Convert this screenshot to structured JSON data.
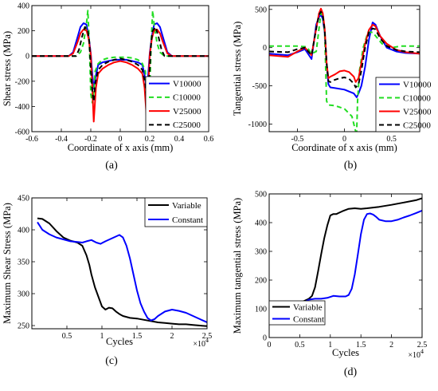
{
  "chart_data": [
    {
      "type": "line",
      "id": "a",
      "caption": "(a)",
      "xlabel": "Coordinate of x axis (mm)",
      "ylabel": "Shear stress (MPa)",
      "xlim": [
        -0.6,
        0.6
      ],
      "ylim": [
        -600,
        400
      ],
      "xticks": [
        "-0.6",
        "-0.4",
        "-0.2",
        "0",
        "0.2",
        "0.4",
        "0.6"
      ],
      "xtick_values": [
        -0.6,
        -0.4,
        -0.2,
        0,
        0.2,
        0.4,
        0.6
      ],
      "yticks": [
        "-600",
        "-400",
        "-200",
        "0",
        "200",
        "400"
      ],
      "ytick_values": [
        -600,
        -400,
        -200,
        0,
        200,
        400
      ],
      "grid": false,
      "legend": "bottom-right",
      "series": [
        {
          "name": "V10000",
          "color": "#0000ff",
          "dash": "solid",
          "x": [
            -0.6,
            -0.35,
            -0.32,
            -0.29,
            -0.27,
            -0.25,
            -0.23,
            -0.215,
            -0.2,
            -0.19,
            -0.18,
            -0.165,
            -0.15,
            -0.12,
            -0.08,
            -0.04,
            0,
            0.04,
            0.08,
            0.12,
            0.15,
            0.165,
            0.18,
            0.19,
            0.2,
            0.215,
            0.23,
            0.25,
            0.27,
            0.29,
            0.32,
            0.35,
            0.6
          ],
          "y": [
            0,
            0,
            30,
            150,
            230,
            260,
            250,
            160,
            20,
            -140,
            -260,
            -150,
            -70,
            -50,
            -40,
            -30,
            -30,
            -30,
            -40,
            -50,
            -70,
            -150,
            -260,
            -140,
            20,
            160,
            250,
            260,
            230,
            150,
            30,
            0,
            0
          ]
        },
        {
          "name": "C10000",
          "color": "#22dd22",
          "dash": "dashed",
          "x": [
            -0.6,
            -0.3,
            -0.27,
            -0.25,
            -0.23,
            -0.22,
            -0.21,
            -0.2,
            -0.19,
            -0.18,
            -0.17,
            -0.15,
            -0.12,
            -0.08,
            -0.04,
            0,
            0.04,
            0.08,
            0.12,
            0.15,
            0.17,
            0.18,
            0.19,
            0.2,
            0.21,
            0.22,
            0.23,
            0.25,
            0.27,
            0.3,
            0.6
          ],
          "y": [
            0,
            0,
            30,
            100,
            250,
            360,
            100,
            -300,
            -370,
            -300,
            -120,
            -60,
            -30,
            -15,
            -10,
            -10,
            -10,
            -15,
            -30,
            -60,
            -120,
            -300,
            -370,
            -300,
            100,
            360,
            250,
            100,
            30,
            0,
            0
          ]
        },
        {
          "name": "V25000",
          "color": "#ff0000",
          "dash": "solid",
          "x": [
            -0.6,
            -0.35,
            -0.32,
            -0.29,
            -0.27,
            -0.25,
            -0.23,
            -0.215,
            -0.2,
            -0.19,
            -0.18,
            -0.165,
            -0.15,
            -0.12,
            -0.08,
            -0.04,
            0,
            0.04,
            0.08,
            0.12,
            0.15,
            0.165,
            0.18,
            0.19,
            0.2,
            0.215,
            0.23,
            0.25,
            0.27,
            0.29,
            0.32,
            0.35,
            0.6
          ],
          "y": [
            0,
            0,
            20,
            110,
            180,
            210,
            205,
            140,
            10,
            -250,
            -520,
            -250,
            -140,
            -100,
            -70,
            -50,
            -40,
            -50,
            -70,
            -100,
            -140,
            -250,
            -500,
            -250,
            10,
            140,
            205,
            210,
            180,
            110,
            20,
            0,
            0
          ]
        },
        {
          "name": "C25000",
          "color": "#000000",
          "dash": "dashed",
          "x": [
            -0.6,
            -0.3,
            -0.28,
            -0.26,
            -0.24,
            -0.22,
            -0.21,
            -0.2,
            -0.19,
            -0.18,
            -0.17,
            -0.15,
            -0.12,
            -0.08,
            -0.04,
            0,
            0.04,
            0.08,
            0.12,
            0.15,
            0.17,
            0.18,
            0.19,
            0.2,
            0.21,
            0.22,
            0.24,
            0.26,
            0.28,
            0.3,
            0.6
          ],
          "y": [
            0,
            0,
            50,
            150,
            230,
            200,
            110,
            -100,
            -280,
            -360,
            -220,
            -110,
            -70,
            -45,
            -30,
            -20,
            -30,
            -45,
            -70,
            -110,
            -220,
            -360,
            -280,
            -100,
            110,
            200,
            230,
            150,
            50,
            0,
            0
          ]
        }
      ]
    },
    {
      "type": "line",
      "id": "b",
      "caption": "(b)",
      "xlabel": "Coordinate of x axis (mm)",
      "ylabel": "Tangential stress (MPa)",
      "xlim": [
        -0.8,
        0.8
      ],
      "ylim": [
        -1100,
        550
      ],
      "xticks": [
        "-0.5",
        "0",
        "0.5"
      ],
      "xtick_values": [
        -0.5,
        0,
        0.5
      ],
      "yticks": [
        "-1000",
        "-500",
        "0",
        "500"
      ],
      "ytick_values": [
        -1000,
        -500,
        0,
        500
      ],
      "grid": false,
      "legend": "bottom-right",
      "series": [
        {
          "name": "V10000",
          "color": "#0000ff",
          "dash": "solid",
          "x": [
            -0.8,
            -0.6,
            -0.5,
            -0.42,
            -0.35,
            -0.3,
            -0.27,
            -0.25,
            -0.23,
            -0.21,
            -0.19,
            -0.17,
            -0.15,
            -0.1,
            0,
            0.1,
            0.13,
            0.15,
            0.18,
            0.22,
            0.26,
            0.3,
            0.33,
            0.38,
            0.45,
            0.55,
            0.65,
            0.8
          ],
          "y": [
            -80,
            -100,
            -60,
            -20,
            -150,
            300,
            400,
            430,
            380,
            200,
            -200,
            -480,
            -520,
            -530,
            -550,
            -600,
            -650,
            -600,
            -500,
            -250,
            100,
            330,
            300,
            150,
            0,
            -50,
            -70,
            -80
          ]
        },
        {
          "name": "C10000",
          "color": "#22dd22",
          "dash": "dashed",
          "x": [
            -0.8,
            -0.5,
            -0.4,
            -0.35,
            -0.3,
            -0.27,
            -0.25,
            -0.23,
            -0.21,
            -0.19,
            -0.17,
            -0.1,
            0,
            0.08,
            0.1,
            0.12,
            0.13,
            0.14,
            0.16,
            0.2,
            0.25,
            0.3,
            0.4,
            0.5,
            0.6,
            0.8
          ],
          "y": [
            20,
            20,
            10,
            -80,
            -50,
            250,
            450,
            430,
            200,
            -700,
            -750,
            -760,
            -800,
            -900,
            -1000,
            -1100,
            -1100,
            -700,
            -300,
            0,
            200,
            200,
            50,
            0,
            20,
            20
          ]
        },
        {
          "name": "V25000",
          "color": "#ff0000",
          "dash": "solid",
          "x": [
            -0.8,
            -0.6,
            -0.5,
            -0.42,
            -0.35,
            -0.3,
            -0.27,
            -0.25,
            -0.23,
            -0.21,
            -0.19,
            -0.17,
            -0.15,
            -0.1,
            -0.05,
            0,
            0.05,
            0.1,
            0.12,
            0.15,
            0.18,
            0.22,
            0.26,
            0.3,
            0.33,
            0.38,
            0.45,
            0.55,
            0.65,
            0.8
          ],
          "y": [
            -100,
            -120,
            -50,
            0,
            -100,
            250,
            450,
            510,
            450,
            250,
            -200,
            -400,
            -380,
            -350,
            -310,
            -300,
            -320,
            -380,
            -450,
            -400,
            -200,
            50,
            230,
            300,
            280,
            150,
            50,
            -30,
            -60,
            -80
          ]
        },
        {
          "name": "C25000",
          "color": "#000000",
          "dash": "dashed",
          "x": [
            -0.8,
            -0.6,
            -0.5,
            -0.42,
            -0.35,
            -0.3,
            -0.27,
            -0.25,
            -0.23,
            -0.21,
            -0.19,
            -0.17,
            -0.15,
            -0.1,
            -0.05,
            0,
            0.05,
            0.1,
            0.12,
            0.15,
            0.18,
            0.22,
            0.26,
            0.3,
            0.33,
            0.38,
            0.45,
            0.55,
            0.65,
            0.8
          ],
          "y": [
            -50,
            -60,
            -20,
            0,
            -100,
            250,
            430,
            470,
            420,
            230,
            -200,
            -440,
            -450,
            -420,
            -400,
            -390,
            -410,
            -470,
            -520,
            -480,
            -300,
            0,
            200,
            250,
            240,
            120,
            20,
            -30,
            -50,
            -60
          ]
        }
      ]
    },
    {
      "type": "line",
      "id": "c",
      "caption": "(c)",
      "xlabel": "Cycles",
      "ylabel": "Maximum Shear Stress (MPa)",
      "multiplier": "×10^4",
      "xlim": [
        0,
        2.5
      ],
      "ylim": [
        245,
        450
      ],
      "xticks": [
        "0.5",
        "1",
        "1.5",
        "2",
        "2.5"
      ],
      "xtick_values": [
        0.5,
        1,
        1.5,
        2,
        2.5
      ],
      "yticks": [
        "250",
        "300",
        "350",
        "400",
        "450"
      ],
      "ytick_values": [
        250,
        300,
        350,
        400,
        450
      ],
      "grid": false,
      "legend": "top-right",
      "series": [
        {
          "name": "Variable",
          "color": "#000000",
          "dash": "solid",
          "x": [
            0.08,
            0.15,
            0.25,
            0.35,
            0.45,
            0.55,
            0.65,
            0.72,
            0.78,
            0.82,
            0.85,
            0.9,
            0.95,
            1.0,
            1.05,
            1.1,
            1.15,
            1.2,
            1.25,
            1.3,
            1.4,
            1.5,
            1.6,
            1.7,
            1.8,
            1.9,
            2.0,
            2.1,
            2.2,
            2.3,
            2.4,
            2.5
          ],
          "y": [
            418,
            417,
            410,
            398,
            388,
            383,
            380,
            375,
            360,
            345,
            330,
            310,
            295,
            280,
            275,
            278,
            277,
            272,
            268,
            265,
            262,
            261,
            259,
            257,
            255,
            254,
            253,
            252,
            252,
            251,
            250,
            249
          ]
        },
        {
          "name": "Constant",
          "color": "#0000ff",
          "dash": "solid",
          "x": [
            0.08,
            0.15,
            0.25,
            0.35,
            0.45,
            0.55,
            0.65,
            0.72,
            0.78,
            0.85,
            0.92,
            0.98,
            1.05,
            1.15,
            1.25,
            1.3,
            1.35,
            1.4,
            1.45,
            1.5,
            1.55,
            1.6,
            1.65,
            1.7,
            1.75,
            1.8,
            1.9,
            2.0,
            2.1,
            2.2,
            2.3,
            2.4,
            2.5
          ],
          "y": [
            412,
            400,
            393,
            388,
            385,
            382,
            381,
            380,
            382,
            384,
            380,
            378,
            382,
            387,
            392,
            388,
            375,
            355,
            330,
            305,
            285,
            272,
            262,
            258,
            260,
            265,
            272,
            275,
            273,
            270,
            265,
            260,
            255
          ]
        }
      ]
    },
    {
      "type": "line",
      "id": "d",
      "caption": "(d)",
      "xlabel": "Cycles",
      "ylabel": "Maximum tangential stress (MPa)",
      "multiplier": "×10^4",
      "xlim": [
        0,
        2.5
      ],
      "ylim": [
        0,
        500
      ],
      "xticks": [
        "0",
        "0.5",
        "1",
        "1.5",
        "2",
        "2.5"
      ],
      "xtick_values": [
        0,
        0.5,
        1,
        1.5,
        2,
        2.5
      ],
      "yticks": [
        "0",
        "100",
        "200",
        "300",
        "400",
        "500"
      ],
      "ytick_values": [
        0,
        100,
        200,
        300,
        400,
        500
      ],
      "grid": false,
      "legend": "bottom-left",
      "series": [
        {
          "name": "Variable",
          "color": "#000000",
          "dash": "solid",
          "x": [
            0.05,
            0.15,
            0.25,
            0.35,
            0.45,
            0.55,
            0.65,
            0.7,
            0.75,
            0.8,
            0.85,
            0.9,
            0.95,
            1.0,
            1.05,
            1.1,
            1.15,
            1.2,
            1.3,
            1.4,
            1.5,
            1.6,
            1.8,
            2.0,
            2.2,
            2.4,
            2.5
          ],
          "y": [
            70,
            75,
            85,
            100,
            115,
            125,
            135,
            145,
            175,
            230,
            290,
            345,
            390,
            425,
            430,
            430,
            435,
            440,
            448,
            450,
            448,
            450,
            455,
            462,
            470,
            478,
            485
          ]
        },
        {
          "name": "Constant",
          "color": "#0000ff",
          "dash": "solid",
          "x": [
            0.05,
            0.15,
            0.25,
            0.35,
            0.45,
            0.55,
            0.65,
            0.75,
            0.85,
            0.95,
            1.05,
            1.15,
            1.25,
            1.3,
            1.35,
            1.4,
            1.45,
            1.5,
            1.55,
            1.6,
            1.65,
            1.7,
            1.75,
            1.8,
            1.9,
            2.0,
            2.1,
            2.2,
            2.3,
            2.4,
            2.5
          ],
          "y": [
            70,
            80,
            90,
            100,
            110,
            120,
            132,
            135,
            135,
            138,
            145,
            143,
            143,
            148,
            170,
            220,
            290,
            360,
            410,
            430,
            432,
            428,
            420,
            410,
            405,
            405,
            410,
            418,
            425,
            433,
            442
          ]
        }
      ]
    }
  ]
}
